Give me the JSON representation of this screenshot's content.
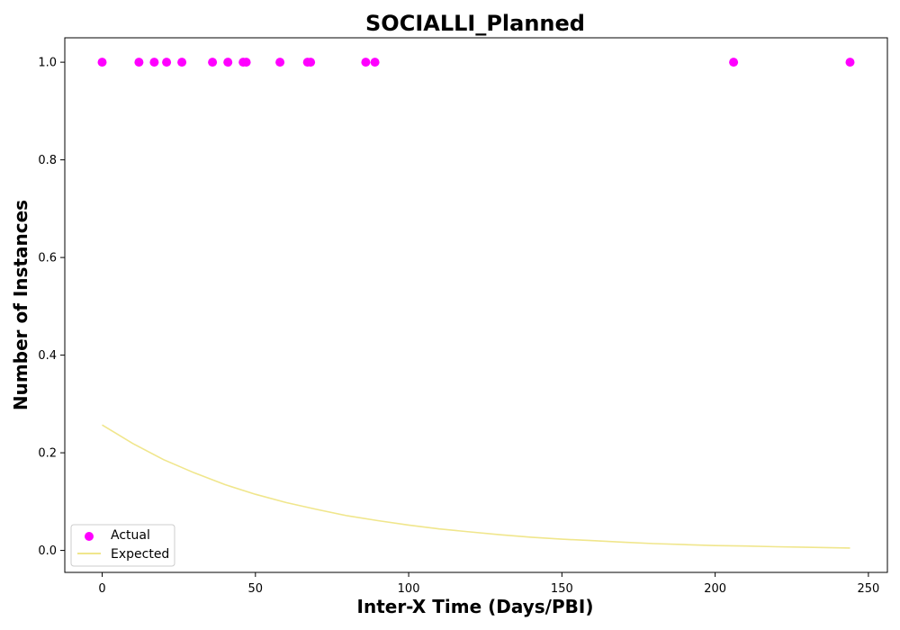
{
  "chart_data": {
    "type": "scatter",
    "title": "SOCIALLI_Planned",
    "xlabel": "Inter-X Time (Days/PBI)",
    "ylabel": "Number of Instances",
    "xlim": [
      -12.2,
      256.2
    ],
    "ylim": [
      -0.045,
      1.05
    ],
    "xticks": [
      0,
      50,
      100,
      150,
      200,
      250
    ],
    "yticks": [
      0.0,
      0.2,
      0.4,
      0.6,
      0.8,
      1.0
    ],
    "xtick_labels": [
      "0",
      "50",
      "100",
      "150",
      "200",
      "250"
    ],
    "ytick_labels": [
      "0.0",
      "0.2",
      "0.4",
      "0.6",
      "0.8",
      "1.0"
    ],
    "grid": false,
    "legend": "lower-left",
    "series": [
      {
        "name": "Actual",
        "kind": "scatter",
        "color": "#ff00ff",
        "x": [
          0,
          12,
          17,
          21,
          26,
          36,
          41,
          46,
          47,
          58,
          67,
          68,
          86,
          89,
          206,
          244
        ],
        "y": [
          1,
          1,
          1,
          1,
          1,
          1,
          1,
          1,
          1,
          1,
          1,
          1,
          1,
          1,
          1,
          1
        ]
      },
      {
        "name": "Expected",
        "kind": "line",
        "color": "#f0e68c",
        "x": [
          0,
          10,
          20,
          30,
          40,
          50,
          60,
          70,
          80,
          90,
          100,
          110,
          120,
          130,
          140,
          150,
          160,
          170,
          180,
          190,
          200,
          210,
          220,
          230,
          244
        ],
        "y": [
          0.257,
          0.219,
          0.186,
          0.159,
          0.135,
          0.115,
          0.098,
          0.084,
          0.071,
          0.061,
          0.052,
          0.044,
          0.038,
          0.032,
          0.027,
          0.023,
          0.02,
          0.017,
          0.014,
          0.012,
          0.01,
          0.009,
          0.0075,
          0.0064,
          0.005
        ]
      }
    ]
  }
}
